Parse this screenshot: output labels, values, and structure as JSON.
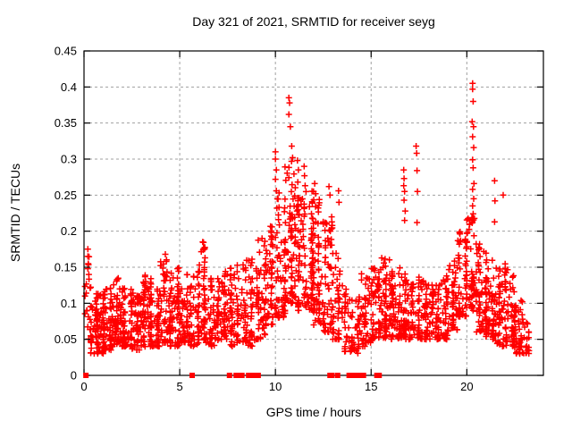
{
  "chart_data": {
    "type": "scatter",
    "title": "Day 321 of 2021, SRMTID for receiver seyg",
    "xlabel": "GPS time / hours",
    "ylabel": "SRMTID / TECUs",
    "xlim": [
      0,
      24
    ],
    "ylim": [
      0,
      0.45
    ],
    "x_ticks": {
      "values": [
        0,
        5,
        10,
        15,
        20
      ],
      "labels": [
        "0",
        "5",
        "10",
        "15",
        "20"
      ]
    },
    "y_ticks": {
      "values": [
        0,
        0.05,
        0.1,
        0.15,
        0.2,
        0.25,
        0.3,
        0.35,
        0.4,
        0.45
      ],
      "labels": [
        "0",
        "0.05",
        "0.1",
        "0.15",
        "0.2",
        "0.25",
        "0.3",
        "0.35",
        "0.4",
        "0.45"
      ]
    },
    "grid": true,
    "legend": false,
    "colors": {
      "marker": "#ff0000",
      "grid": "#a0a0a0",
      "border": "#000000"
    },
    "marker": {
      "shape": "plus",
      "size": 7
    },
    "zero_marker": {
      "shape": "square",
      "size": 6
    },
    "series": [
      {
        "name": "SRMTID",
        "description_of_points": "dense scatter of red plus markers; per-bin envelope [x_start,x_end,count,y_min,y_max] read from plot",
        "density_bins": [
          [
            0.05,
            0.35,
            18,
            0.05,
            0.175
          ],
          [
            0.35,
            1.0,
            85,
            0.03,
            0.115
          ],
          [
            1.0,
            1.5,
            60,
            0.035,
            0.125
          ],
          [
            1.5,
            2.0,
            60,
            0.04,
            0.135
          ],
          [
            2.0,
            2.5,
            60,
            0.04,
            0.125
          ],
          [
            2.5,
            3.0,
            55,
            0.035,
            0.115
          ],
          [
            3.0,
            3.5,
            60,
            0.04,
            0.14
          ],
          [
            3.5,
            4.0,
            55,
            0.04,
            0.12
          ],
          [
            4.0,
            4.5,
            60,
            0.045,
            0.165
          ],
          [
            4.5,
            5.0,
            55,
            0.04,
            0.15
          ],
          [
            5.0,
            5.5,
            55,
            0.045,
            0.14
          ],
          [
            5.5,
            6.0,
            50,
            0.04,
            0.145
          ],
          [
            6.0,
            6.5,
            55,
            0.045,
            0.185
          ],
          [
            6.5,
            7.0,
            50,
            0.04,
            0.135
          ],
          [
            7.0,
            7.5,
            50,
            0.05,
            0.155
          ],
          [
            7.5,
            8.0,
            45,
            0.04,
            0.15
          ],
          [
            8.0,
            8.5,
            45,
            0.045,
            0.155
          ],
          [
            8.5,
            9.0,
            45,
            0.04,
            0.165
          ],
          [
            9.0,
            9.5,
            50,
            0.05,
            0.19
          ],
          [
            9.5,
            10.0,
            55,
            0.07,
            0.21
          ],
          [
            10.0,
            10.5,
            60,
            0.08,
            0.26
          ],
          [
            10.5,
            11.0,
            65,
            0.1,
            0.3
          ],
          [
            11.0,
            11.5,
            65,
            0.09,
            0.275
          ],
          [
            11.5,
            12.0,
            65,
            0.09,
            0.26
          ],
          [
            12.0,
            12.5,
            60,
            0.07,
            0.245
          ],
          [
            12.5,
            13.0,
            55,
            0.06,
            0.22
          ],
          [
            13.0,
            13.5,
            45,
            0.05,
            0.185
          ],
          [
            13.5,
            14.0,
            32,
            0.03,
            0.12
          ],
          [
            14.0,
            14.5,
            32,
            0.03,
            0.115
          ],
          [
            14.5,
            15.0,
            45,
            0.04,
            0.145
          ],
          [
            15.0,
            15.5,
            50,
            0.05,
            0.15
          ],
          [
            15.5,
            16.0,
            55,
            0.05,
            0.165
          ],
          [
            16.0,
            16.5,
            55,
            0.05,
            0.15
          ],
          [
            16.5,
            17.0,
            50,
            0.05,
            0.15
          ],
          [
            17.0,
            17.5,
            45,
            0.05,
            0.14
          ],
          [
            17.5,
            18.0,
            45,
            0.05,
            0.135
          ],
          [
            18.0,
            18.5,
            45,
            0.05,
            0.13
          ],
          [
            18.5,
            19.0,
            45,
            0.05,
            0.14
          ],
          [
            19.0,
            19.5,
            50,
            0.06,
            0.16
          ],
          [
            19.5,
            20.0,
            55,
            0.08,
            0.2
          ],
          [
            20.0,
            20.5,
            60,
            0.09,
            0.23
          ],
          [
            20.5,
            21.0,
            55,
            0.06,
            0.185
          ],
          [
            21.0,
            21.5,
            60,
            0.05,
            0.165
          ],
          [
            21.5,
            22.0,
            60,
            0.04,
            0.155
          ],
          [
            22.0,
            22.5,
            55,
            0.04,
            0.15
          ],
          [
            22.5,
            23.0,
            45,
            0.03,
            0.105
          ],
          [
            23.0,
            23.25,
            15,
            0.03,
            0.075
          ]
        ],
        "peak_points": [
          [
            0.2,
            0.175
          ],
          [
            0.2,
            0.165
          ],
          [
            0.22,
            0.155
          ],
          [
            0.2,
            0.148
          ],
          [
            0.25,
            0.14
          ],
          [
            4.25,
            0.168
          ],
          [
            4.3,
            0.158
          ],
          [
            6.2,
            0.185
          ],
          [
            9.3,
            0.19
          ],
          [
            10.0,
            0.31
          ],
          [
            10.0,
            0.3
          ],
          [
            10.05,
            0.285
          ],
          [
            10.0,
            0.272
          ],
          [
            10.05,
            0.256
          ],
          [
            10.1,
            0.245
          ],
          [
            10.7,
            0.385
          ],
          [
            10.74,
            0.378
          ],
          [
            10.7,
            0.362
          ],
          [
            10.78,
            0.345
          ],
          [
            10.85,
            0.318
          ],
          [
            10.9,
            0.302
          ],
          [
            11.15,
            0.298
          ],
          [
            11.2,
            0.285
          ],
          [
            11.5,
            0.29
          ],
          [
            11.52,
            0.277
          ],
          [
            11.55,
            0.263
          ],
          [
            12.05,
            0.266
          ],
          [
            12.1,
            0.252
          ],
          [
            12.8,
            0.262
          ],
          [
            12.85,
            0.25
          ],
          [
            13.3,
            0.256
          ],
          [
            13.32,
            0.24
          ],
          [
            16.7,
            0.285
          ],
          [
            16.72,
            0.273
          ],
          [
            16.7,
            0.263
          ],
          [
            16.75,
            0.255
          ],
          [
            16.72,
            0.243
          ],
          [
            16.78,
            0.228
          ],
          [
            16.75,
            0.215
          ],
          [
            17.35,
            0.318
          ],
          [
            17.38,
            0.308
          ],
          [
            17.4,
            0.284
          ],
          [
            17.42,
            0.255
          ],
          [
            17.4,
            0.212
          ],
          [
            20.3,
            0.405
          ],
          [
            20.3,
            0.397
          ],
          [
            20.33,
            0.38
          ],
          [
            20.28,
            0.352
          ],
          [
            20.35,
            0.345
          ],
          [
            20.3,
            0.331
          ],
          [
            20.36,
            0.316
          ],
          [
            20.3,
            0.299
          ],
          [
            20.33,
            0.288
          ],
          [
            20.37,
            0.266
          ],
          [
            20.3,
            0.258
          ],
          [
            20.36,
            0.245
          ],
          [
            20.3,
            0.235
          ],
          [
            21.45,
            0.27
          ],
          [
            21.47,
            0.242
          ],
          [
            21.45,
            0.213
          ],
          [
            21.9,
            0.25
          ]
        ],
        "zero_value_times": [
          0.1,
          5.65,
          7.6,
          7.95,
          8.1,
          8.25,
          8.6,
          8.75,
          8.9,
          9.1,
          12.85,
          12.95,
          13.25,
          13.85,
          13.95,
          14.05,
          14.15,
          14.25,
          14.35,
          14.45,
          14.6,
          15.3,
          15.42
        ]
      }
    ]
  }
}
